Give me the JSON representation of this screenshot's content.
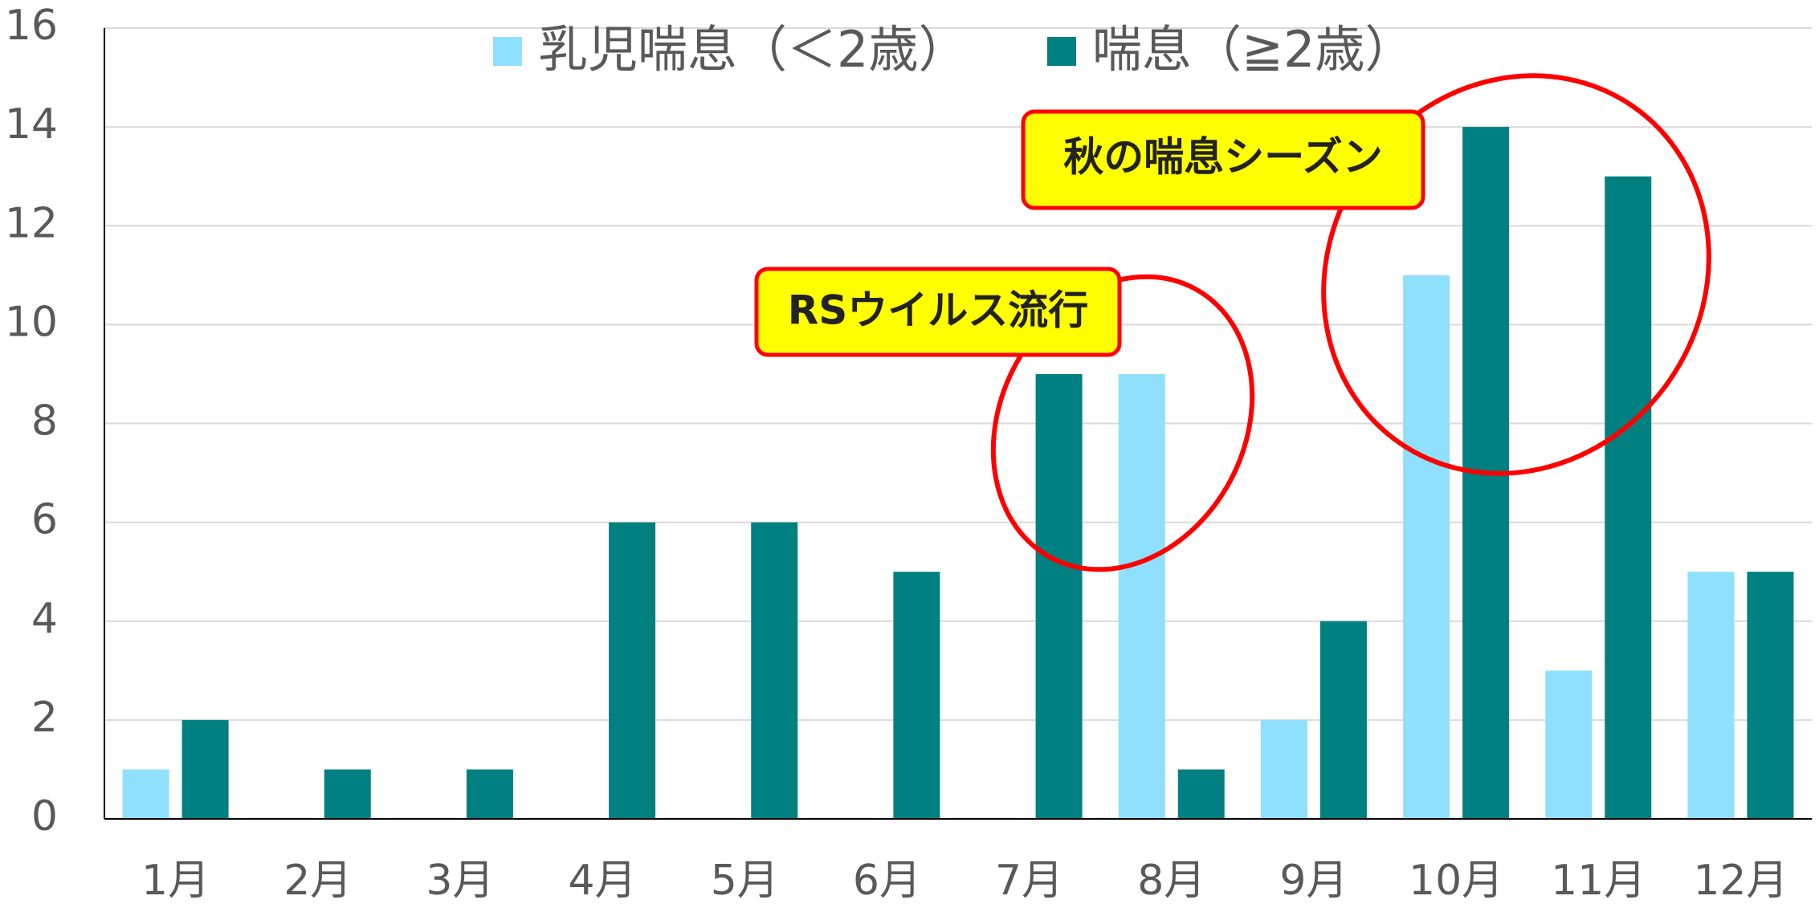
{
  "chart_data": {
    "type": "bar",
    "categories": [
      "1月",
      "2月",
      "3月",
      "4月",
      "5月",
      "6月",
      "7月",
      "8月",
      "9月",
      "10月",
      "11月",
      "12月"
    ],
    "series": [
      {
        "name": "乳児喘息（＜2歳）",
        "color": "#8ee0fc",
        "values": [
          1,
          0,
          0,
          0,
          0,
          0,
          0,
          9,
          2,
          11,
          3,
          5
        ]
      },
      {
        "name": "喘息（≧2歳）",
        "color": "#008080",
        "values": [
          2,
          1,
          1,
          6,
          6,
          5,
          9,
          1,
          4,
          14,
          13,
          5
        ]
      }
    ],
    "ylim": [
      0,
      16
    ],
    "yticks": [
      0,
      2,
      4,
      6,
      8,
      10,
      12,
      14,
      16
    ],
    "grid": true,
    "legend": "top",
    "annotations": [
      {
        "text": "RSウイルス流行"
      },
      {
        "text": "秋の喘息シーズン"
      }
    ]
  }
}
